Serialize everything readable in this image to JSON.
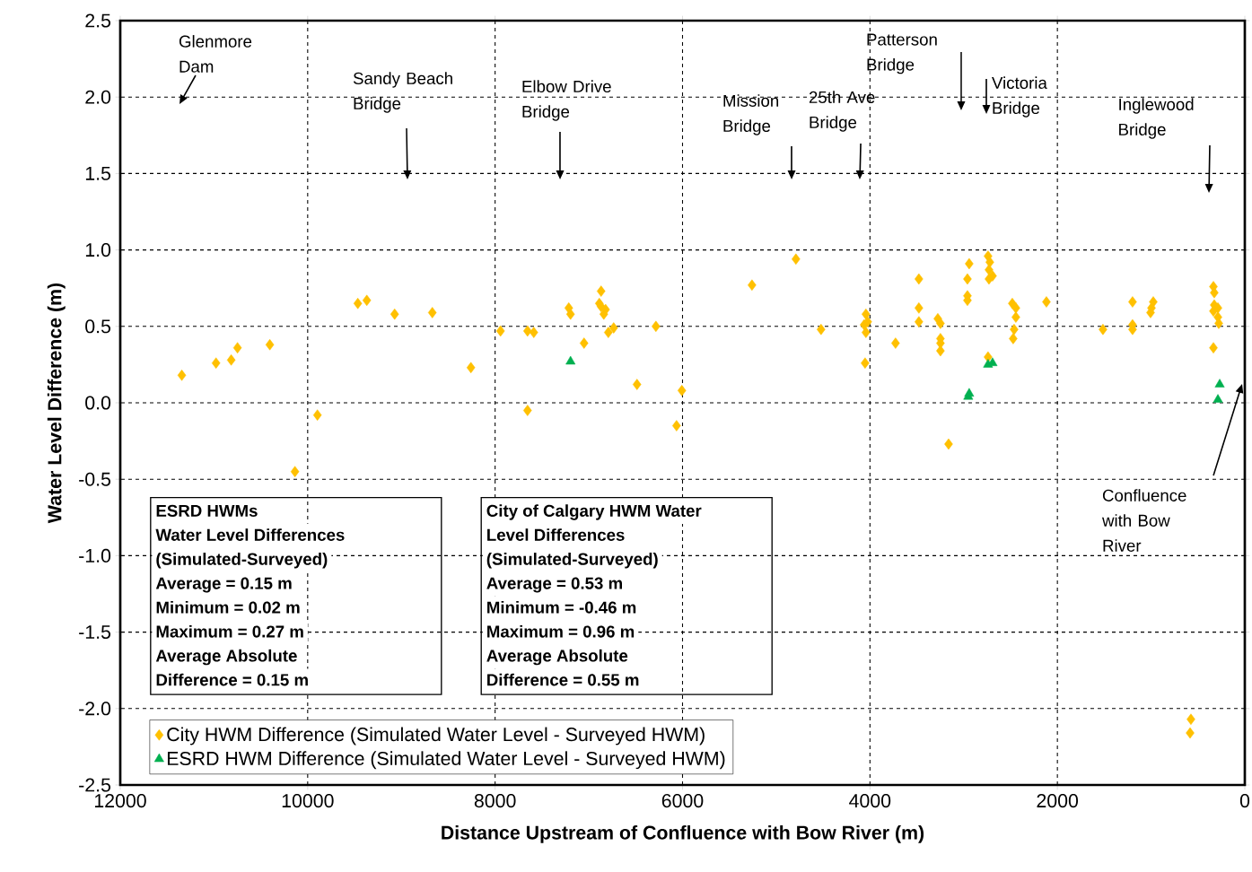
{
  "chart_data": {
    "type": "scatter",
    "xlabel": "Distance Upstream of Confluence with Bow River (m)",
    "ylabel": "Water Level Difference (m)",
    "xlim": [
      12000,
      0
    ],
    "xticks": [
      12000,
      10000,
      8000,
      6000,
      4000,
      2000,
      0
    ],
    "ylim": [
      -2.5,
      2.5
    ],
    "yticks": [
      {
        "value": -2.5,
        "label": "-2.5"
      },
      {
        "value": -2.0,
        "label": "-2.0"
      },
      {
        "value": -1.5,
        "label": "-1.5"
      },
      {
        "value": -1.0,
        "label": "-1.0"
      },
      {
        "value": -0.5,
        "label": "-0.5"
      },
      {
        "value": 0,
        "label": "0.0"
      },
      {
        "value": 0.5,
        "label": "0.5"
      },
      {
        "value": 1.0,
        "label": "1.0"
      },
      {
        "value": 1.5,
        "label": "1.5"
      },
      {
        "value": 2.0,
        "label": "2.0"
      },
      {
        "value": 2.5,
        "label": "2.5"
      }
    ],
    "grid": true,
    "legend": "bottom left",
    "series": [
      {
        "name": "City HWM Difference (Simulated Water Level - Surveyed HWM)",
        "color": "#ffc000",
        "marker": "diamond",
        "x": [
          11343,
          10978,
          10816,
          10749,
          10404,
          10136,
          9896,
          9465,
          9369,
          9072,
          8670,
          8258,
          7942,
          7654,
          7654,
          7587,
          7214,
          7195,
          7051,
          6869,
          6888,
          6869,
          6821,
          6840,
          6792,
          6735,
          6486,
          6284,
          6064,
          6007,
          5259,
          4790,
          4522,
          4043,
          4024,
          4062,
          4043,
          4052,
          3727,
          3478,
          3478,
          3478,
          3276,
          3248,
          3248,
          3248,
          3248,
          3161,
          2941,
          2960,
          2960,
          2960,
          2740,
          2721,
          2730,
          2692,
          2730,
          2740,
          2481,
          2443,
          2443,
          2462,
          2472,
          2117,
          1514,
          1198,
          1198,
          1198,
          977,
          996,
          1006,
          335,
          326,
          326,
          287,
          335,
          287,
          278,
          335,
          575,
          584
        ],
        "values": [
          0.18,
          0.26,
          0.28,
          0.36,
          0.38,
          -0.45,
          -0.08,
          0.65,
          0.67,
          0.58,
          0.59,
          0.23,
          0.47,
          0.47,
          -0.05,
          0.46,
          0.62,
          0.58,
          0.39,
          0.73,
          0.65,
          0.63,
          0.61,
          0.58,
          0.46,
          0.49,
          0.12,
          0.5,
          -0.15,
          0.08,
          0.77,
          0.94,
          0.48,
          0.58,
          0.53,
          0.51,
          0.46,
          0.26,
          0.39,
          0.81,
          0.62,
          0.53,
          0.55,
          0.52,
          0.42,
          0.39,
          0.34,
          -0.27,
          0.91,
          0.81,
          0.7,
          0.67,
          0.96,
          0.92,
          0.87,
          0.83,
          0.81,
          0.3,
          0.65,
          0.62,
          0.56,
          0.48,
          0.42,
          0.66,
          0.48,
          0.66,
          0.51,
          0.48,
          0.66,
          0.62,
          0.59,
          0.76,
          0.72,
          0.64,
          0.62,
          0.6,
          0.56,
          0.52,
          0.36,
          -2.07,
          -2.16
        ]
      },
      {
        "name": "ESRD HWM Difference (Simulated Water Level - Surveyed HWM)",
        "color": "#00b050",
        "marker": "triangle",
        "x": [
          7195,
          2740,
          2692,
          2951,
          2941,
          268,
          287
        ],
        "values": [
          0.27,
          0.25,
          0.26,
          0.04,
          0.06,
          0.12,
          0.02
        ]
      }
    ],
    "annotations": [
      "Glenmore Dam",
      "Sandy Beach Bridge",
      "Elbow Drive Bridge",
      "Mission Bridge",
      "25th Ave Bridge",
      "Patterson Bridge",
      "Victoria Bridge",
      "Inglewood Bridge",
      "Confluence with Bow River",
      "ESRD HWMs",
      "Water Level Differences",
      "(Simulated-Surveyed)",
      "Average    = 0.15 m",
      "Minimum =  0.02 m",
      "Maximum =  0.27 m",
      "Average Absolute",
      "Difference = 0.15 m",
      "City of Calgary HWM Water",
      "Level Differences",
      "(Simulated-Surveyed)",
      "Average    = 0.53 m",
      "Minimum = -0.46 m",
      "Maximum =  0.96 m",
      "Average Absolute",
      "Difference = 0.55 m"
    ]
  }
}
